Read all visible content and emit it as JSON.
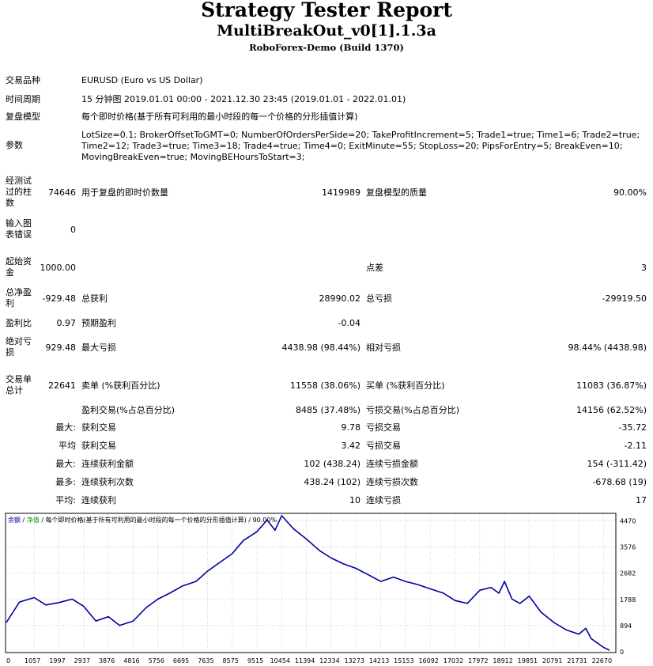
{
  "report": {
    "title": "Strategy Tester Report",
    "ea_name": "MultiBreakOut_v0[1].1.3a",
    "server": "RoboForex-Demo (Build 1370)"
  },
  "settings": {
    "symbol_label": "交易品种",
    "symbol_value": "EURUSD (Euro vs US Dollar)",
    "period_label": "时间周期",
    "period_value": "15 分钟图 2019.01.01 00:00 - 2021.12.30 23:45 (2019.01.01 - 2022.01.01)",
    "model_label": "复盘模型",
    "model_value": "每个即时价格(基于所有可利用的最小时段的每一个价格的分形插值计算)",
    "params_label": "参数",
    "params_value": "LotSize=0.1; BrokerOffsetToGMT=0; NumberOfOrdersPerSide=20; TakeProfitIncrement=5; Trade1=true; Time1=6; Trade2=true; Time2=12; Trade3=true; Time3=18; Trade4=true; Time4=0; ExitMinute=55; StopLoss=20; PipsForEntry=5; BreakEven=10; MovingBreakEven=true; MovingBEHoursToStart=3;"
  },
  "stats": {
    "bars_label": "经测试过的柱数",
    "bars_value": "74646",
    "ticks_label": "用于复盘的即时价数量",
    "ticks_value": "1419989",
    "quality_label": "复盘模型的质量",
    "quality_value": "90.00%",
    "errors_label": "输入图表错误",
    "errors_value": "0",
    "deposit_label": "起始资金",
    "deposit_value": "1000.00",
    "spread_label": "点差",
    "spread_value": "3",
    "net_label": "总净盈利",
    "net_value": "-929.48",
    "gross_profit_label": "总获利",
    "gross_profit_value": "28990.02",
    "gross_loss_label": "总亏损",
    "gross_loss_value": "-29919.50",
    "pf_label": "盈利比",
    "pf_value": "0.97",
    "payoff_label": "预期盈利",
    "payoff_value": "-0.04",
    "abs_dd_label": "绝对亏损",
    "abs_dd_value": "929.48",
    "max_dd_label": "最大亏损",
    "max_dd_value": "4438.98 (98.44%)",
    "rel_dd_label": "相对亏损",
    "rel_dd_value": "98.44% (4438.98)",
    "trades_label": "交易单总计",
    "trades_value": "22641",
    "short_label": "卖单 (%获利百分比)",
    "short_value": "11558 (38.06%)",
    "long_label": "买单 (%获利百分比)",
    "long_value": "11083 (36.87%)",
    "profit_trades_label": "盈利交易(%占总百分比)",
    "profit_trades_value": "8485 (37.48%)",
    "loss_trades_label": "亏损交易(%占总百分比)",
    "loss_trades_value": "14156 (62.52%)",
    "max_prefix": "最大:",
    "largest_profit_label": "获利交易",
    "largest_profit_value": "9.78",
    "largest_loss_label": "亏损交易",
    "largest_loss_value": "-35.72",
    "avg_prefix": "平均",
    "avg_profit_label": "获利交易",
    "avg_profit_value": "3.42",
    "avg_loss_label": "亏损交易",
    "avg_loss_value": "-2.11",
    "max2_prefix": "最大:",
    "max_consec_wins_label": "连续获利金额",
    "max_consec_wins_value": "102 (438.24)",
    "max_consec_losses_label": "连续亏损金额",
    "max_consec_losses_value": "154 (-311.42)",
    "most_prefix": "最多:",
    "max_consec_profit_label": "连续获利次数",
    "max_consec_profit_value": "438.24 (102)",
    "max_consec_loss_label": "连续亏损次数",
    "max_consec_loss_value": "-678.68 (19)",
    "avg2_prefix": "平均:",
    "avg_consec_wins_label": "连续获利",
    "avg_consec_wins_value": "10",
    "avg_consec_losses_label": "连续亏损",
    "avg_consec_losses_value": "17"
  },
  "chart_data": {
    "type": "line",
    "legend_balance": "余额",
    "legend_sep1": " / ",
    "legend_equity": "净值",
    "legend_rest": " / 每个即时价格(基于所有可利用的最小时段的每一个价格的分形插值计算) / 90.00%",
    "colors": {
      "balance": "#0000a0",
      "equity": "#00a000",
      "grid": "#c0c0c0"
    },
    "xlim": [
      0,
      23110
    ],
    "ylim": [
      0,
      4700
    ],
    "x_ticks": [
      0,
      1057,
      1997,
      2937,
      3876,
      4816,
      5756,
      6695,
      7635,
      8575,
      9515,
      10454,
      11394,
      12334,
      13273,
      14213,
      15153,
      16092,
      17032,
      17972,
      18912,
      19851,
      20791,
      21731,
      22670
    ],
    "y_ticks": [
      0,
      894,
      1788,
      2682,
      3576,
      4470
    ],
    "series": [
      {
        "name": "余额",
        "x": [
          0,
          500,
          1057,
          1500,
          1997,
          2500,
          2937,
          3400,
          3876,
          4300,
          4816,
          5300,
          5756,
          6200,
          6695,
          7200,
          7635,
          8100,
          8575,
          9000,
          9515,
          9900,
          10200,
          10454,
          10900,
          11394,
          11900,
          12334,
          12800,
          13273,
          13700,
          14213,
          14700,
          15153,
          15600,
          16092,
          16600,
          17032,
          17500,
          17972,
          18400,
          18700,
          18912,
          19200,
          19500,
          19851,
          20300,
          20791,
          21250,
          21731,
          22000,
          22200,
          22670,
          22900
        ],
        "values": [
          1000,
          1700,
          1850,
          1600,
          1680,
          1800,
          1550,
          1050,
          1200,
          900,
          1050,
          1500,
          1800,
          2000,
          2250,
          2400,
          2750,
          3050,
          3350,
          3800,
          4100,
          4500,
          4150,
          4650,
          4200,
          3850,
          3450,
          3200,
          3000,
          2850,
          2650,
          2400,
          2550,
          2400,
          2300,
          2150,
          2000,
          1750,
          1650,
          2100,
          2200,
          2000,
          2400,
          1800,
          1650,
          1900,
          1350,
          1000,
          750,
          600,
          800,
          450,
          150,
          50
        ]
      }
    ]
  }
}
